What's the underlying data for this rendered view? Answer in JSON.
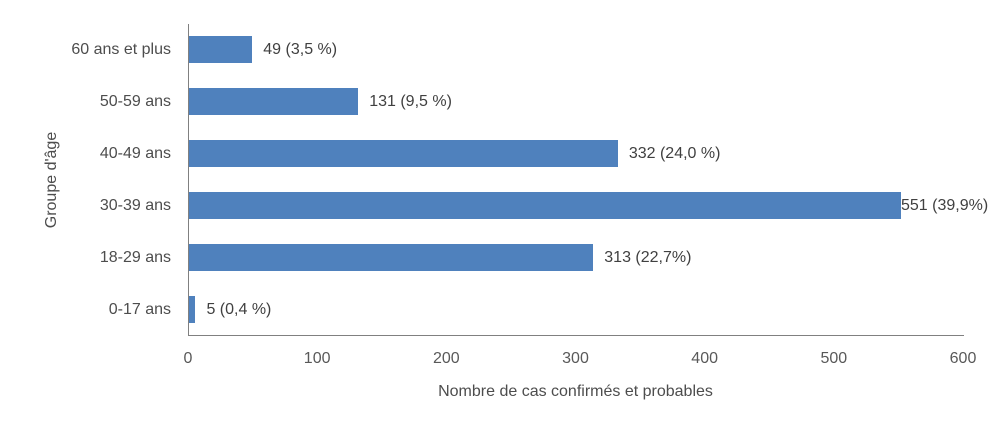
{
  "chart_data": {
    "type": "bar",
    "orientation": "horizontal",
    "categories": [
      "60 ans et plus",
      "50-59 ans",
      "40-49 ans",
      "30-39 ans",
      "18-29 ans",
      "0-17 ans"
    ],
    "values": [
      49,
      131,
      332,
      551,
      313,
      5
    ],
    "value_labels": [
      "49 (3,5 %)",
      "131 (9,5 %)",
      "332 (24,0 %)",
      "551 (39,9%)",
      "313 (22,7%)",
      "5 (0,4 %)"
    ],
    "percentages": [
      3.5,
      9.5,
      24.0,
      39.9,
      22.7,
      0.4
    ],
    "title": "",
    "xlabel": "Nombre de cas confirmés et probables",
    "ylabel": "Groupe d'âge",
    "xlim": [
      0,
      600
    ],
    "xticks": [
      0,
      100,
      200,
      300,
      400,
      500,
      600
    ],
    "grid": false,
    "legend": false,
    "bar_color": "#4f81bd",
    "text_color": "#4d4d4d",
    "tick_color": "#595959",
    "axis_color": "#808080"
  }
}
